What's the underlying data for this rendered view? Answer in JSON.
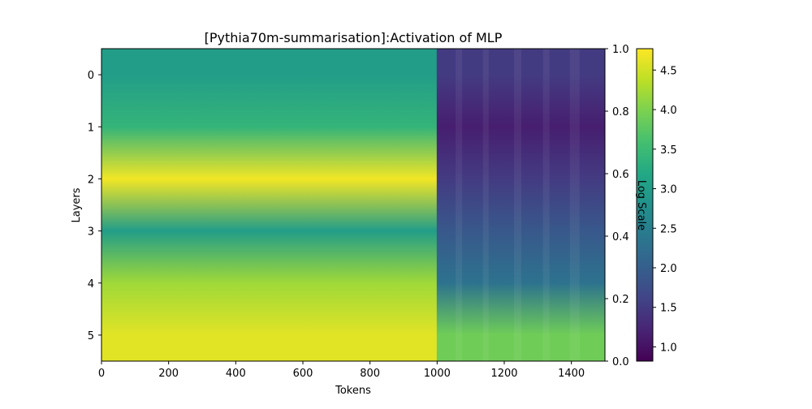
{
  "chart_data": {
    "type": "heatmap",
    "title": "[Pythia70m-summarisation]:Activation of MLP",
    "xlabel": "Tokens",
    "ylabel": "Layers",
    "xlim": [
      0,
      1500
    ],
    "x_ticks": [
      0,
      200,
      400,
      600,
      800,
      1000,
      1200,
      1400
    ],
    "y_categories": [
      "0",
      "1",
      "2",
      "3",
      "4",
      "5"
    ],
    "right_axis": {
      "ylim": [
        0.0,
        1.0
      ],
      "ticks": [
        "0.0",
        "0.2",
        "0.4",
        "0.6",
        "0.8",
        "1.0"
      ]
    },
    "colorbar": {
      "label": "Log Scale",
      "colormap": "viridis",
      "range": [
        0.82,
        4.77
      ],
      "ticks": [
        "1.0",
        "1.5",
        "2.0",
        "2.5",
        "3.0",
        "3.5",
        "4.0",
        "4.5"
      ]
    },
    "profiles": [
      {
        "x_range": [
          0,
          1000
        ],
        "layer_values": [
          3.0,
          3.4,
          4.7,
          3.0,
          4.2,
          4.6
        ]
      },
      {
        "x_range": [
          1010,
          1500
        ],
        "layer_values": [
          1.5,
          1.15,
          1.5,
          1.9,
          2.3,
          3.9
        ]
      }
    ]
  }
}
